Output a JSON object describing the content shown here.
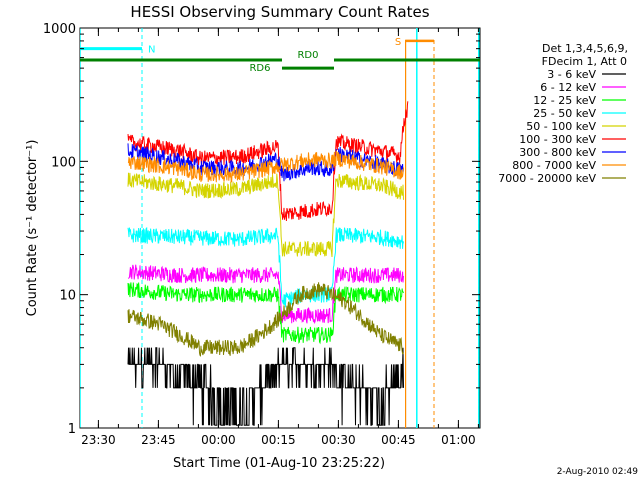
{
  "chart_data": {
    "type": "line",
    "title": "HESSI Observing Summary Count Rates",
    "xlabel": "Start Time (01-Aug-10 23:25:22)",
    "ylabel": "Count Rate (s⁻¹ detector⁻¹)",
    "yscale": "log",
    "ylim": [
      1,
      1000
    ],
    "xlim_minutes": [
      0,
      100
    ],
    "x_tick_labels": [
      "23:30",
      "23:45",
      "00:00",
      "00:15",
      "00:30",
      "00:45",
      "01:00"
    ],
    "x_tick_minutes": [
      4.6,
      19.6,
      34.6,
      49.6,
      64.6,
      79.6,
      94.6
    ],
    "y_tick_labels": [
      "1",
      "10",
      "100",
      "1000"
    ],
    "y_tick_values": [
      1,
      10,
      100,
      1000
    ],
    "grid": false,
    "legend_placement": "right",
    "legend_header": [
      "Det 1,3,4,5,6,9,",
      "FDecim 1, Att 0"
    ],
    "footer_timestamp": "2-Aug-2010 02:49",
    "annotations": {
      "night": {
        "label": "N",
        "color": "#00ffff",
        "solid": [
          [
            0,
            15.5
          ],
          [
            100,
            101
          ]
        ],
        "dashed": [
          15.5,
          99.7
        ],
        "level": 700
      },
      "saa": {
        "label": "S",
        "color": "#ff8c00",
        "solid": [
          [
            81.3,
            88.5
          ]
        ],
        "dashed": [
          88.5
        ],
        "level": 800
      },
      "decimation": {
        "color": "#008000",
        "solid": [
          [
            0,
            50.5
          ],
          [
            63.5,
            101
          ]
        ],
        "level": 575,
        "labels": [
          {
            "text": "RD0",
            "at": 57,
            "level": 640
          },
          {
            "text": "RD6",
            "at": 45,
            "level": 510
          }
        ],
        "dip": [
          50.5,
          63.5
        ],
        "dip_level": 500
      },
      "cyan_solid_lines": [
        0,
        84.2,
        99.7
      ],
      "orange_solid_lines": [
        81.4
      ]
    },
    "series": [
      {
        "name": "3 - 6 keV",
        "color": "#000000",
        "segments": [
          {
            "from": 12,
            "to": 81,
            "points": [
              [
                12,
                3
              ],
              [
                20,
                3
              ],
              [
                25,
                2.5
              ],
              [
                30,
                2.2
              ],
              [
                35,
                1.6
              ],
              [
                40,
                1.4
              ],
              [
                45,
                2
              ],
              [
                49.5,
                2.6
              ],
              [
                50.5,
                3
              ],
              [
                55,
                3
              ],
              [
                63,
                3
              ],
              [
                64,
                2.5
              ],
              [
                70,
                2
              ],
              [
                75,
                1.6
              ],
              [
                80,
                2.5
              ],
              [
                81,
                3
              ]
            ]
          }
        ]
      },
      {
        "name": "6 - 12 keV",
        "color": "#ff00ff",
        "segments": [
          {
            "from": 12,
            "to": 81,
            "points": [
              [
                12,
                15
              ],
              [
                25,
                14
              ],
              [
                40,
                14
              ],
              [
                49.5,
                14
              ],
              [
                50.5,
                7
              ],
              [
                63,
                7
              ],
              [
                64,
                14
              ],
              [
                75,
                14
              ],
              [
                81,
                14
              ]
            ]
          }
        ]
      },
      {
        "name": "12 - 25 keV",
        "color": "#00ff00",
        "segments": [
          {
            "from": 12,
            "to": 81,
            "points": [
              [
                12,
                11
              ],
              [
                25,
                10
              ],
              [
                40,
                10
              ],
              [
                49.5,
                10
              ],
              [
                50.5,
                5
              ],
              [
                63,
                5
              ],
              [
                64,
                10
              ],
              [
                75,
                10
              ],
              [
                81,
                10
              ]
            ]
          }
        ]
      },
      {
        "name": "25 - 50 keV",
        "color": "#00ffff",
        "segments": [
          {
            "from": 12,
            "to": 81,
            "points": [
              [
                12,
                28
              ],
              [
                25,
                27
              ],
              [
                40,
                26
              ],
              [
                49.5,
                28
              ],
              [
                50.5,
                9
              ],
              [
                56,
                10
              ],
              [
                63,
                10
              ],
              [
                64,
                28
              ],
              [
                75,
                27
              ],
              [
                81,
                25
              ]
            ]
          }
        ]
      },
      {
        "name": "50 - 100 keV",
        "color": "#d4d400",
        "segments": [
          {
            "from": 12,
            "to": 81,
            "points": [
              [
                12,
                72
              ],
              [
                25,
                65
              ],
              [
                30,
                60
              ],
              [
                40,
                62
              ],
              [
                49.5,
                72
              ],
              [
                50.5,
                22
              ],
              [
                63,
                22
              ],
              [
                64,
                72
              ],
              [
                75,
                66
              ],
              [
                81,
                58
              ]
            ]
          }
        ]
      },
      {
        "name": "100 - 300 keV",
        "color": "#ff0000",
        "segments": [
          {
            "from": 12,
            "to": 82,
            "points": [
              [
                12,
                140
              ],
              [
                25,
                120
              ],
              [
                30,
                105
              ],
              [
                40,
                108
              ],
              [
                49.5,
                130
              ],
              [
                50.5,
                40
              ],
              [
                63,
                45
              ],
              [
                64,
                140
              ],
              [
                75,
                120
              ],
              [
                80,
                110
              ],
              [
                81,
                200
              ],
              [
                82,
                260
              ]
            ]
          }
        ]
      },
      {
        "name": "300 - 800 keV",
        "color": "#0000ff",
        "segments": [
          {
            "from": 12,
            "to": 81,
            "points": [
              [
                12,
                120
              ],
              [
                25,
                100
              ],
              [
                30,
                90
              ],
              [
                40,
                88
              ],
              [
                49.5,
                105
              ],
              [
                50.5,
                80
              ],
              [
                58,
                90
              ],
              [
                63,
                85
              ],
              [
                64,
                115
              ],
              [
                75,
                95
              ],
              [
                81,
                85
              ]
            ]
          }
        ]
      },
      {
        "name": "800 - 7000 keV",
        "color": "#ff8c00",
        "segments": [
          {
            "from": 12,
            "to": 81,
            "points": [
              [
                12,
                100
              ],
              [
                25,
                88
              ],
              [
                30,
                80
              ],
              [
                40,
                80
              ],
              [
                49.5,
                92
              ],
              [
                55,
                100
              ],
              [
                60,
                104
              ],
              [
                63,
                100
              ],
              [
                64,
                105
              ],
              [
                75,
                92
              ],
              [
                81,
                82
              ]
            ]
          }
        ]
      },
      {
        "name": "7000 - 20000 keV",
        "color": "#808000",
        "segments": [
          {
            "from": 12,
            "to": 81,
            "points": [
              [
                12,
                7
              ],
              [
                20,
                6
              ],
              [
                25,
                5
              ],
              [
                30,
                4
              ],
              [
                40,
                4
              ],
              [
                45,
                5
              ],
              [
                49.5,
                6.5
              ],
              [
                55,
                10
              ],
              [
                60,
                11
              ],
              [
                63,
                10
              ],
              [
                66,
                9
              ],
              [
                70,
                7
              ],
              [
                75,
                5
              ],
              [
                81,
                4
              ]
            ]
          }
        ]
      }
    ]
  }
}
